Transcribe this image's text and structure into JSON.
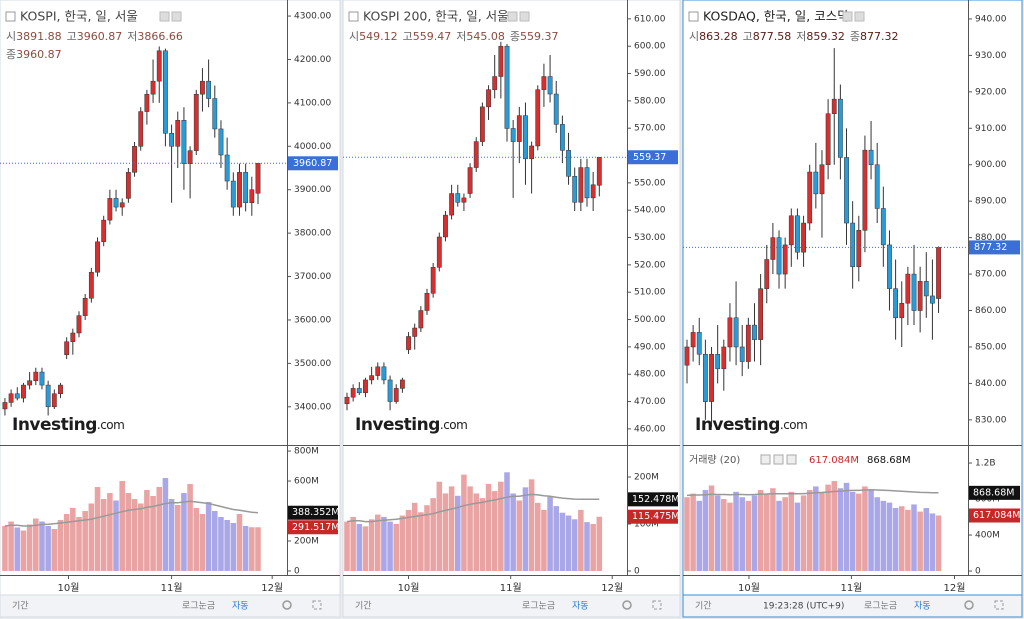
{
  "ui": {
    "stat_labels": [
      "시",
      "고",
      "저",
      "종"
    ],
    "watermark_brand": "Investing",
    "watermark_suffix": ".com",
    "footer": [
      "기간",
      "로그눈금",
      "자동"
    ],
    "time": "19:23:28 (UTC+9)"
  },
  "chart_data": [
    {
      "type": "candlestick",
      "title": "KOSPI, 한국, 일, 서울",
      "up_color": "#d62f2f",
      "down_color": "#2b9bd8",
      "open": [
        3395,
        3410,
        3430,
        3420,
        3450,
        3460,
        3480,
        3450,
        3400,
        3430,
        3520,
        3550,
        3570,
        3610,
        3650,
        3710,
        3780,
        3830,
        3880,
        3860,
        3880,
        3940,
        4000,
        4080,
        4120,
        4150,
        4220,
        4030,
        4000,
        4060,
        3960,
        3990,
        4120,
        4150,
        4110,
        4040,
        3980,
        3920,
        3860,
        3940,
        3870,
        3891.88
      ],
      "high": [
        3420,
        3440,
        3445,
        3455,
        3480,
        3490,
        3490,
        3460,
        3440,
        3455,
        3560,
        3580,
        3620,
        3660,
        3720,
        3790,
        3840,
        3900,
        3900,
        3880,
        3950,
        4010,
        4090,
        4130,
        4200,
        4230,
        4225,
        4050,
        4080,
        4090,
        4000,
        4130,
        4180,
        4200,
        4140,
        4060,
        4020,
        3940,
        3960,
        3960,
        3930,
        3960.87
      ],
      "low": [
        3380,
        3400,
        3415,
        3410,
        3440,
        3450,
        3440,
        3380,
        3395,
        3420,
        3510,
        3520,
        3560,
        3600,
        3640,
        3700,
        3770,
        3820,
        3850,
        3840,
        3870,
        3930,
        3990,
        4050,
        4100,
        4100,
        4000,
        3870,
        3950,
        3900,
        3880,
        3980,
        4080,
        4090,
        4020,
        3950,
        3900,
        3840,
        3840,
        3850,
        3840,
        3866.66
      ],
      "close": [
        3410,
        3430,
        3420,
        3450,
        3460,
        3480,
        3450,
        3400,
        3430,
        3450,
        3550,
        3570,
        3610,
        3650,
        3710,
        3780,
        3830,
        3880,
        3860,
        3870,
        3940,
        4000,
        4080,
        4120,
        4150,
        4220,
        4030,
        4000,
        4060,
        3960,
        3990,
        4120,
        4150,
        4110,
        4040,
        3980,
        3920,
        3860,
        3940,
        3870,
        3900,
        3960.87
      ],
      "ylim": [
        3312,
        4337
      ],
      "yticks": [
        {
          "value": 3400,
          "label": "3400.00"
        },
        {
          "value": 3500,
          "label": "3500.00"
        },
        {
          "value": 3600,
          "label": "3600.00"
        },
        {
          "value": 3700,
          "label": "3700.00"
        },
        {
          "value": 3800,
          "label": "3800.00"
        },
        {
          "value": 3900,
          "label": "3900.00"
        },
        {
          "value": 4000,
          "label": "4000.00"
        },
        {
          "value": 4100,
          "label": "4100.00"
        },
        {
          "value": 4200,
          "label": "4200.00"
        },
        {
          "value": 4300,
          "label": "4300.00"
        }
      ],
      "xlim": [
        -0.8,
        45.7
      ],
      "xticks": [
        {
          "value": 10.3,
          "label": "10월"
        },
        {
          "value": 27,
          "label": "11월"
        },
        {
          "value": 43.3,
          "label": "12월"
        }
      ],
      "volume": {
        "up_color": "#e9a3a3",
        "down_color": "#aaa7e8",
        "ma_color": "#999999",
        "values": [
          300,
          330,
          290,
          270,
          310,
          350,
          330,
          300,
          280,
          340,
          380,
          420,
          360,
          400,
          450,
          560,
          480,
          520,
          470,
          600,
          520,
          480,
          450,
          540,
          500,
          560,
          620,
          480,
          440,
          520,
          580,
          420,
          380,
          460,
          400,
          360,
          340,
          320,
          380,
          300,
          292,
          291.517
        ],
        "ma": [
          300,
          305,
          305,
          300,
          300,
          305,
          310,
          312,
          315,
          320,
          325,
          330,
          335,
          340,
          345,
          355,
          365,
          375,
          385,
          395,
          405,
          410,
          415,
          425,
          430,
          440,
          450,
          455,
          455,
          460,
          465,
          460,
          455,
          450,
          440,
          430,
          420,
          410,
          405,
          398,
          392,
          388.352
        ],
        "value_labels": {
          "last": "291.517M",
          "ma_last": "388.352M"
        },
        "ylim": [
          -27,
          827
        ],
        "yticks": [
          0,
          {
            "value": 200,
            "label": "200M"
          },
          {
            "value": 400,
            "label": "400M"
          },
          {
            "value": 600,
            "label": "600M"
          },
          {
            "value": 800,
            "label": "800M"
          }
        ]
      }
    },
    {
      "type": "candlestick",
      "title": "KOSPI 200, 한국, 일, 서울",
      "up_color": "#d62f2f",
      "down_color": "#2b9bd8",
      "open": [
        469.2,
        471.6,
        474.8,
        473.2,
        477.9,
        479.5,
        482.7,
        477.9,
        470.0,
        474.8,
        489.0,
        493.8,
        496.9,
        503.3,
        509.6,
        519.1,
        530.2,
        538.2,
        546.1,
        542.9,
        546.1,
        555.6,
        565.1,
        577.8,
        584.1,
        588.9,
        600.0,
        569.9,
        565.1,
        574.6,
        558.8,
        563.5,
        584.1,
        588.9,
        582.5,
        571.4,
        561.9,
        552.4,
        542.9,
        555.6,
        544.5,
        549.12
      ],
      "high": [
        473.2,
        476.3,
        477.1,
        478.7,
        482.7,
        484.3,
        484.3,
        479.5,
        476.3,
        478.7,
        495.4,
        498.5,
        504.9,
        511.2,
        520.7,
        531.8,
        539.7,
        549.3,
        549.3,
        546.1,
        557.2,
        566.7,
        579.4,
        585.7,
        596.8,
        601.6,
        600.8,
        573.0,
        577.8,
        579.4,
        565.1,
        585.7,
        593.6,
        596.8,
        587.3,
        574.6,
        568.3,
        555.6,
        558.8,
        558.8,
        554.0,
        559.47
      ],
      "low": [
        466.8,
        470.0,
        472.4,
        471.6,
        476.3,
        477.9,
        476.3,
        466.8,
        469.2,
        473.2,
        487.4,
        489.0,
        495.4,
        501.7,
        508.0,
        517.6,
        528.6,
        536.6,
        541.3,
        539.7,
        544.5,
        554.0,
        563.5,
        573.0,
        580.9,
        580.9,
        565.1,
        544.5,
        557.2,
        549.3,
        546.1,
        561.9,
        577.8,
        579.4,
        568.3,
        557.2,
        549.3,
        539.7,
        539.7,
        541.3,
        539.7,
        545.08
      ],
      "close": [
        471.6,
        474.8,
        473.2,
        477.9,
        479.5,
        482.7,
        477.9,
        470.0,
        474.8,
        477.9,
        493.8,
        496.9,
        503.3,
        509.6,
        519.1,
        530.2,
        538.2,
        546.1,
        542.9,
        544.5,
        555.6,
        565.1,
        577.8,
        584.1,
        588.9,
        600.0,
        569.9,
        565.1,
        574.6,
        558.8,
        563.5,
        584.1,
        588.9,
        582.5,
        571.4,
        561.9,
        552.4,
        542.9,
        555.6,
        544.5,
        549.3,
        559.37
      ],
      "ylim": [
        454.1,
        616.9
      ],
      "yticks": [
        {
          "value": 460,
          "label": "460.00"
        },
        {
          "value": 470,
          "label": "470.00"
        },
        {
          "value": 480,
          "label": "480.00"
        },
        {
          "value": 490,
          "label": "490.00"
        },
        {
          "value": 500,
          "label": "500.00"
        },
        {
          "value": 510,
          "label": "510.00"
        },
        {
          "value": 520,
          "label": "520.00"
        },
        {
          "value": 530,
          "label": "530.00"
        },
        {
          "value": 540,
          "label": "540.00"
        },
        {
          "value": 550,
          "label": "550.00"
        },
        {
          "value": 560,
          "label": "560.00"
        },
        {
          "value": 570,
          "label": "570.00"
        },
        {
          "value": 580,
          "label": "580.00"
        },
        {
          "value": 590,
          "label": "590.00"
        },
        {
          "value": 600,
          "label": "600.00"
        },
        {
          "value": 610,
          "label": "610.00"
        }
      ],
      "xlim": [
        -0.65,
        45.5
      ],
      "xticks": [
        {
          "value": 10,
          "label": "10월"
        },
        {
          "value": 26.6,
          "label": "11월"
        },
        {
          "value": 43.1,
          "label": "12월"
        }
      ],
      "volume": {
        "up_color": "#e9a3a3",
        "down_color": "#aaa7e8",
        "ma_color": "#999999",
        "values": [
          105,
          115,
          100,
          95,
          110,
          120,
          115,
          105,
          100,
          118,
          130,
          145,
          125,
          140,
          155,
          190,
          165,
          180,
          160,
          205,
          180,
          165,
          155,
          185,
          170,
          190,
          210,
          165,
          150,
          178,
          195,
          145,
          130,
          158,
          138,
          124,
          118,
          110,
          130,
          104,
          100,
          115.475
        ],
        "ma": [
          105,
          107,
          107,
          105,
          105,
          107,
          108,
          109,
          110,
          112,
          114,
          116,
          118,
          120,
          122,
          126,
          129,
          132,
          135,
          139,
          142,
          144,
          146,
          149,
          151,
          154,
          157,
          159,
          159,
          161,
          163,
          162,
          160,
          159,
          157,
          155,
          154,
          153,
          152.8,
          152.6,
          152.5,
          152.478
        ],
        "value_labels": {
          "last": "115.475M",
          "ma_last": "152.478M"
        },
        "ylim": [
          -8.5,
          263.8
        ],
        "yticks": [
          0,
          {
            "value": 100,
            "label": "100M"
          },
          {
            "value": 200,
            "label": "200M"
          }
        ]
      }
    },
    {
      "type": "candlestick",
      "title": "KOSDAQ, 한국, 일, 코스닥",
      "up_color": "#d62f2f",
      "down_color": "#2b9bd8",
      "legend_label": "거래량 (20)",
      "open": [
        845,
        850,
        854,
        848,
        835,
        848,
        844,
        850,
        858,
        850,
        846,
        856,
        852,
        866,
        874,
        880,
        870,
        878,
        886,
        876,
        884,
        898,
        892,
        900,
        914,
        918,
        902,
        884,
        872,
        882,
        904,
        900,
        888,
        878,
        866,
        858,
        862,
        870,
        860,
        868,
        864,
        863.28
      ],
      "high": [
        852,
        856,
        858,
        852,
        850,
        856,
        852,
        862,
        868,
        856,
        858,
        862,
        870,
        878,
        884,
        882,
        880,
        888,
        888,
        886,
        900,
        906,
        904,
        918,
        932,
        922,
        910,
        890,
        886,
        908,
        912,
        906,
        894,
        882,
        874,
        868,
        872,
        878,
        872,
        876,
        874,
        877.58
      ],
      "low": [
        840,
        846,
        845,
        830,
        828,
        840,
        838,
        846,
        845,
        842,
        844,
        846,
        845,
        862,
        870,
        866,
        866,
        872,
        874,
        872,
        882,
        888,
        880,
        896,
        900,
        896,
        878,
        866,
        868,
        876,
        896,
        884,
        872,
        860,
        852,
        850,
        856,
        856,
        854,
        858,
        852,
        859.32
      ],
      "close": [
        850,
        854,
        848,
        835,
        848,
        844,
        850,
        858,
        850,
        846,
        856,
        852,
        866,
        874,
        880,
        870,
        878,
        886,
        876,
        884,
        898,
        892,
        900,
        914,
        918,
        902,
        884,
        872,
        882,
        904,
        900,
        888,
        878,
        866,
        858,
        862,
        870,
        860,
        868,
        864,
        862,
        877.32
      ],
      "ylim": [
        823.1,
        945.2
      ],
      "yticks": [
        {
          "value": 830,
          "label": "830.00"
        },
        {
          "value": 840,
          "label": "840.00"
        },
        {
          "value": 850,
          "label": "850.00"
        },
        {
          "value": 860,
          "label": "860.00"
        },
        {
          "value": 870,
          "label": "870.00"
        },
        {
          "value": 880,
          "label": "880.00"
        },
        {
          "value": 890,
          "label": "890.00"
        },
        {
          "value": 900,
          "label": "900.00"
        },
        {
          "value": 910,
          "label": "910.00"
        },
        {
          "value": 920,
          "label": "920.00"
        },
        {
          "value": 930,
          "label": "930.00"
        },
        {
          "value": 940,
          "label": "940.00"
        }
      ],
      "xlim": [
        -0.65,
        45.8
      ],
      "xticks": [
        {
          "value": 10.1,
          "label": "10월"
        },
        {
          "value": 26.8,
          "label": "11월"
        },
        {
          "value": 43.6,
          "label": "12월"
        }
      ],
      "volume": {
        "up_color": "#e9a3a3",
        "down_color": "#aaa7e8",
        "ma_color": "#999999",
        "values": [
          820,
          860,
          780,
          900,
          950,
          840,
          800,
          760,
          880,
          820,
          780,
          840,
          900,
          860,
          920,
          780,
          820,
          880,
          760,
          840,
          900,
          940,
          880,
          960,
          1000,
          920,
          980,
          880,
          860,
          940,
          900,
          820,
          780,
          760,
          700,
          720,
          680,
          740,
          660,
          700,
          640,
          617.084
        ],
        "ma": [
          840,
          845,
          845,
          848,
          852,
          850,
          850,
          848,
          850,
          850,
          848,
          850,
          855,
          856,
          860,
          858,
          858,
          860,
          858,
          860,
          864,
          870,
          872,
          878,
          884,
          888,
          894,
          896,
          896,
          900,
          902,
          900,
          898,
          895,
          890,
          886,
          882,
          878,
          874,
          872,
          870,
          868.68
        ],
        "value_labels": {
          "last": "617.084M",
          "ma_last": "868.68M"
        },
        "ylim": [
          -44,
          1378
        ],
        "yticks": [
          0,
          {
            "value": 400,
            "label": "400M"
          },
          {
            "value": 800,
            "label": "800M"
          },
          {
            "value": 1200,
            "label": "1.2B"
          }
        ]
      }
    }
  ]
}
